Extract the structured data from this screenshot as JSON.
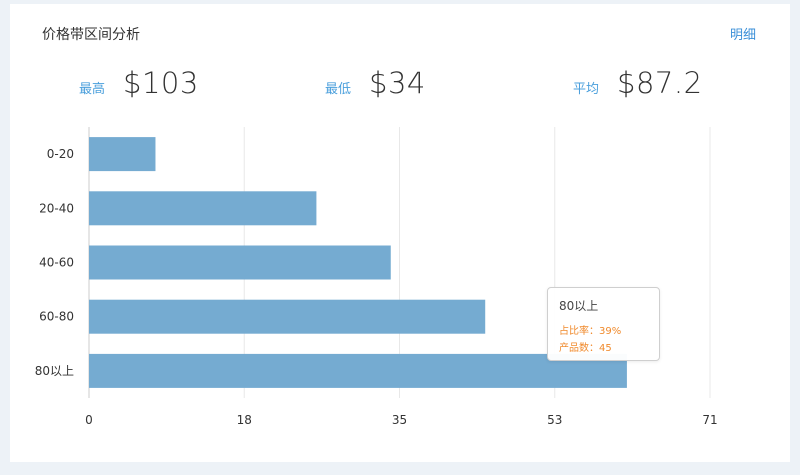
{
  "header": {
    "title": "价格带区间分析",
    "detail_label": "明细"
  },
  "stats": {
    "max_label": "最高",
    "max_value": "$103",
    "min_label": "最低",
    "min_value": "$34",
    "avg_label": "平均",
    "avg_value": "$87.2"
  },
  "tooltip": {
    "title": "80以上",
    "row1": "占比率：39%",
    "row2": "产品数：45"
  },
  "colors": {
    "bar": "#75abd1",
    "grid": "#e8e8e8",
    "axis_text": "#333333",
    "accent": "#4a9fdc",
    "tooltip_text": "#f08a2c"
  },
  "chart_data": {
    "type": "bar",
    "orientation": "horizontal",
    "categories": [
      "0-20",
      "20-40",
      "40-60",
      "60-80",
      "80以上"
    ],
    "values": [
      7.6,
      26,
      34.5,
      45.3,
      61.5
    ],
    "xlim": [
      0,
      71
    ],
    "xticks": [
      "0",
      "18",
      "35",
      "53",
      "71"
    ],
    "xtick_values": [
      0,
      17.75,
      35.5,
      53.25,
      71
    ],
    "grid": true,
    "title": "",
    "xlabel": "",
    "ylabel": ""
  }
}
